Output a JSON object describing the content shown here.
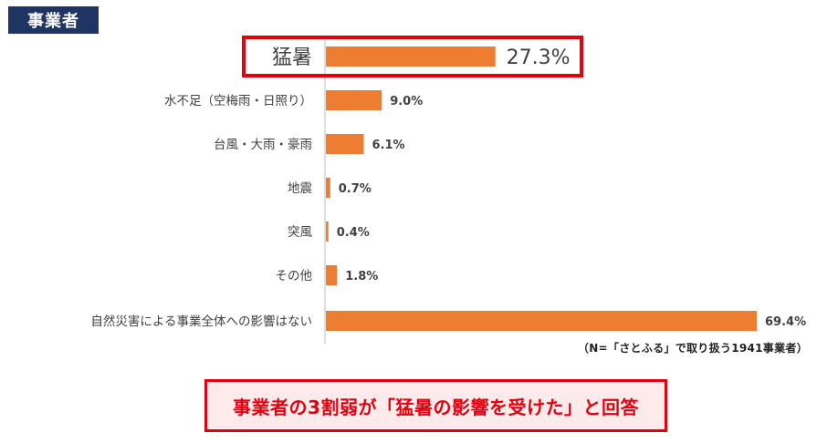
{
  "tag_label": "事業者",
  "note": "（N=「さとふる」で取り扱う1941事業者）",
  "callout": "事業者の3割弱が「猛暑の影響を受けた」と回答",
  "colors": {
    "bar": "#ed7d31",
    "highlight_border": "#e3000f",
    "tag_bg": "#1f3463",
    "axis": "#bfbfbf"
  },
  "chart_data": {
    "type": "bar",
    "orientation": "horizontal",
    "categories": [
      "猛暑",
      "水不足（空梅雨・日照り）",
      "台風・大雨・豪雨",
      "地震",
      "突風",
      "その他",
      "自然災害による事業全体への影響はない"
    ],
    "values": [
      27.3,
      9.0,
      6.1,
      0.7,
      0.4,
      1.8,
      69.4
    ],
    "value_labels": [
      "27.3%",
      "9.0%",
      "6.1%",
      "0.7%",
      "0.4%",
      "1.8%",
      "69.4%"
    ],
    "highlighted_category": "猛暑",
    "xlim": [
      0,
      70
    ]
  }
}
